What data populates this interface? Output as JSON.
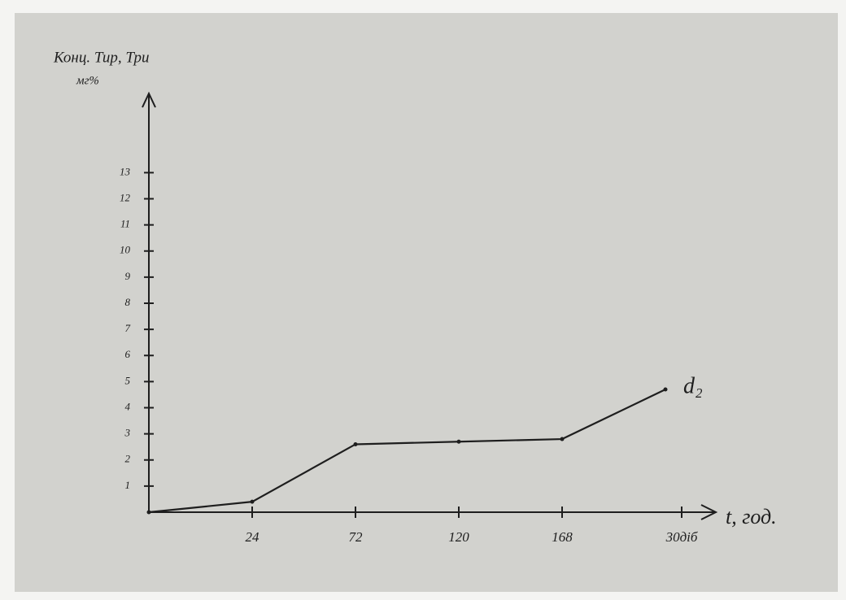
{
  "chart_data": {
    "type": "line",
    "y_label": "Конц. Тир, Три",
    "y_unit": "мг%",
    "x_label": "t, год.",
    "categories": [
      null,
      "24",
      "72",
      "120",
      "168",
      "30діб"
    ],
    "series": [
      {
        "name": "d₂",
        "color": "#1e1e1e",
        "values": [
          0,
          0.4,
          2.6,
          2.7,
          2.8,
          4.7
        ]
      }
    ],
    "ylim": [
      0,
      16
    ],
    "yticks": [
      1,
      2,
      3,
      4,
      5,
      6,
      7,
      8,
      9,
      10,
      11,
      12,
      13
    ]
  }
}
